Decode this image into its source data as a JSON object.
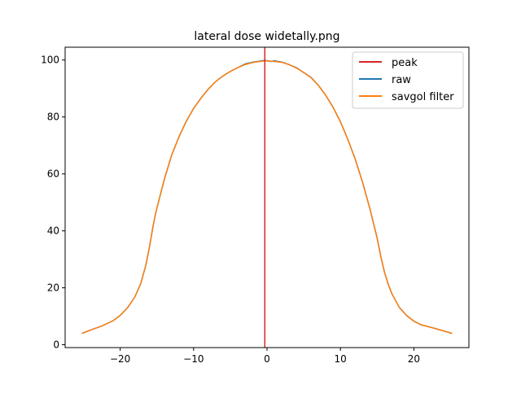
{
  "chart_data": {
    "type": "line",
    "title": "lateral dose widetally.png",
    "xlabel": "",
    "ylabel": "",
    "xlim": [
      -27.5,
      27.5
    ],
    "ylim": [
      -1,
      104.5
    ],
    "xticks": [
      -20,
      -10,
      0,
      10,
      20
    ],
    "xtick_labels": [
      "−20",
      "−10",
      "0",
      "10",
      "20"
    ],
    "yticks": [
      0,
      20,
      40,
      60,
      80,
      100
    ],
    "ytick_labels": [
      "0",
      "20",
      "40",
      "60",
      "80",
      "100"
    ],
    "grid": false,
    "legend_position": "upper-right",
    "peak": {
      "name": "peak",
      "x": -0.3,
      "color": "#d62728"
    },
    "series": [
      {
        "name": "raw",
        "color": "#1f77b4",
        "x": [
          -25.2,
          -24,
          -22.5,
          -21,
          -20,
          -19,
          -18,
          -17.2,
          -16.5,
          -16,
          -15.5,
          -15.1,
          -14.5,
          -14,
          -13,
          -12,
          -11,
          -10,
          -9,
          -8,
          -7,
          -6,
          -5,
          -4,
          -3,
          -2,
          -1,
          -0.3,
          0.5,
          1,
          2,
          3,
          4,
          5,
          6,
          7,
          8,
          9,
          10,
          11,
          12,
          13,
          14,
          15,
          15.5,
          16,
          16.5,
          17,
          18,
          19,
          20,
          21,
          22.5,
          24,
          25.2
        ],
        "y": [
          4,
          5.2,
          6.6,
          8.4,
          10.3,
          13,
          16.8,
          21.5,
          28,
          34.5,
          42,
          47,
          53,
          58,
          66.5,
          73,
          78.5,
          83,
          86.6,
          89.8,
          92.4,
          94.4,
          96,
          97.3,
          98.6,
          99.2,
          99.6,
          99.9,
          99.5,
          99.7,
          99.3,
          98.4,
          97.3,
          95.6,
          93.9,
          91.1,
          87.6,
          83.4,
          78.3,
          72.2,
          65.3,
          57.2,
          47.9,
          37.5,
          31,
          25.5,
          21.3,
          18,
          13.2,
          10.3,
          8.3,
          7,
          6,
          4.9,
          4
        ]
      },
      {
        "name": "savgol filter",
        "color": "#ff7f0e",
        "x": [
          -25.2,
          -24,
          -22.5,
          -21,
          -20,
          -19,
          -18,
          -17.2,
          -16.5,
          -16,
          -15.5,
          -15.1,
          -14.5,
          -14,
          -13,
          -12,
          -11,
          -10,
          -9,
          -8,
          -7,
          -6,
          -5,
          -4,
          -3,
          -2,
          -1,
          -0.3,
          0.5,
          1,
          2,
          3,
          4,
          5,
          6,
          7,
          8,
          9,
          10,
          11,
          12,
          13,
          14,
          15,
          15.5,
          16,
          16.5,
          17,
          18,
          19,
          20,
          21,
          22.5,
          24,
          25.2
        ],
        "y": [
          4,
          5.2,
          6.6,
          8.4,
          10.3,
          13,
          16.8,
          21.5,
          28,
          34.5,
          42,
          47,
          53,
          58,
          66.5,
          73,
          78.5,
          83,
          86.6,
          89.8,
          92.4,
          94.4,
          96,
          97.3,
          98.4,
          99.1,
          99.5,
          99.7,
          99.6,
          99.5,
          99.2,
          98.4,
          97.2,
          95.6,
          93.8,
          91.1,
          87.6,
          83.4,
          78.3,
          72.2,
          65.3,
          57.2,
          47.9,
          37.5,
          31,
          25.5,
          21.3,
          18,
          13.2,
          10.3,
          8.3,
          7,
          6,
          4.9,
          4
        ]
      }
    ]
  }
}
